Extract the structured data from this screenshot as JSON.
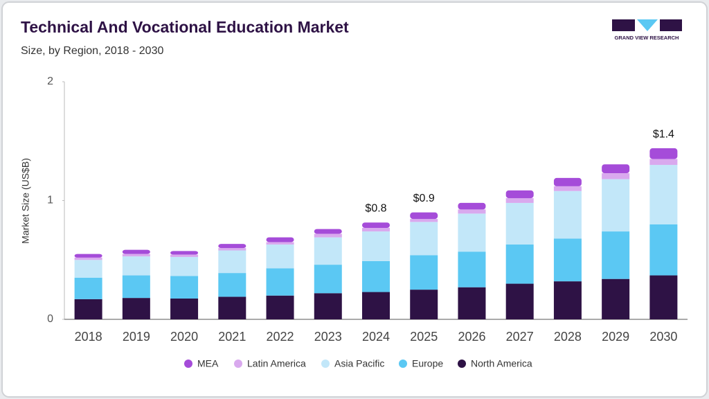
{
  "brand": "GRAND VIEW RESEARCH",
  "chart_data": {
    "type": "stacked_bar",
    "title": "Technical And Vocational Education Market",
    "subtitle": "Size, by Region, 2018 - 2030",
    "y_label": "Market Size (US$B)",
    "categories": [
      "2018",
      "2019",
      "2020",
      "2021",
      "2022",
      "2023",
      "2024",
      "2025",
      "2026",
      "2027",
      "2028",
      "2029",
      "2030"
    ],
    "series": [
      {
        "name": "MEA",
        "color": "#a54cd9",
        "values": [
          0.03,
          0.035,
          0.03,
          0.035,
          0.04,
          0.04,
          0.045,
          0.055,
          0.055,
          0.065,
          0.07,
          0.075,
          0.09
        ]
      },
      {
        "name": "Latin America",
        "color": "#d9a9ee",
        "values": [
          0.02,
          0.02,
          0.02,
          0.02,
          0.02,
          0.03,
          0.03,
          0.025,
          0.035,
          0.04,
          0.04,
          0.05,
          0.05
        ]
      },
      {
        "name": "Asia Pacific",
        "color": "#c2e7f9",
        "values": [
          0.15,
          0.16,
          0.16,
          0.19,
          0.2,
          0.23,
          0.25,
          0.28,
          0.32,
          0.35,
          0.4,
          0.44,
          0.5
        ]
      },
      {
        "name": "Europe",
        "color": "#5bc8f3",
        "values": [
          0.18,
          0.19,
          0.19,
          0.2,
          0.23,
          0.24,
          0.26,
          0.29,
          0.3,
          0.33,
          0.36,
          0.4,
          0.43
        ]
      },
      {
        "name": "North America",
        "color": "#2e1245",
        "values": [
          0.17,
          0.18,
          0.175,
          0.19,
          0.2,
          0.22,
          0.23,
          0.25,
          0.27,
          0.3,
          0.32,
          0.34,
          0.37
        ]
      }
    ],
    "total_labels": [
      null,
      null,
      null,
      null,
      null,
      null,
      "$0.8",
      "$0.9",
      null,
      null,
      null,
      null,
      "$1.4"
    ],
    "ylim": [
      0,
      2
    ],
    "yticks": [
      0,
      1,
      2
    ]
  }
}
